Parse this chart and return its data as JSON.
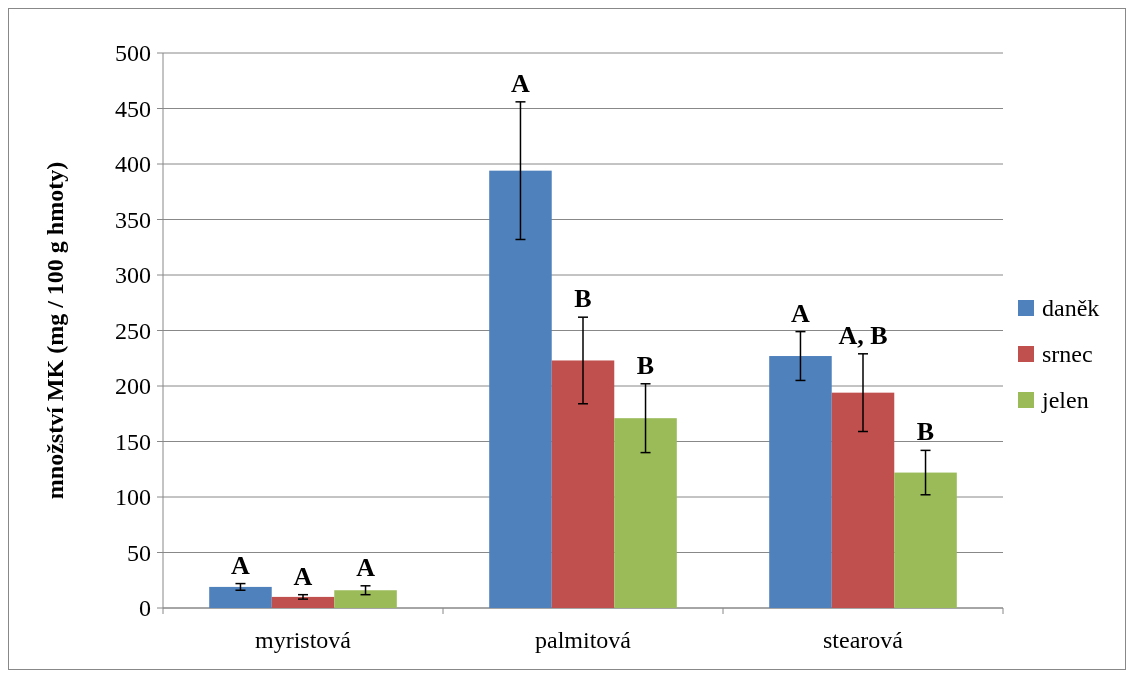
{
  "chart_data": {
    "type": "bar",
    "ylabel": "množství MK (mg / 100 g hmoty)",
    "categories": [
      "myristová",
      "palmitová",
      "stearová"
    ],
    "series": [
      {
        "name": "daněk",
        "color": "#4f81bd",
        "values": [
          19,
          394,
          227
        ],
        "errors": [
          3,
          62,
          22
        ]
      },
      {
        "name": "srnec",
        "color": "#c0504d",
        "values": [
          10,
          223,
          194
        ],
        "errors": [
          2,
          39,
          35
        ]
      },
      {
        "name": "jelen",
        "color": "#9bbb59",
        "values": [
          16,
          171,
          122
        ],
        "errors": [
          4,
          31,
          20
        ]
      }
    ],
    "ylim": [
      0,
      500
    ],
    "yticks": [
      0,
      50,
      100,
      150,
      200,
      250,
      300,
      350,
      400,
      450,
      500
    ],
    "grid": "y",
    "legend": "right",
    "annotations": [
      "A",
      "A",
      "A",
      "A",
      "B",
      "B",
      "A",
      "A, B",
      "B"
    ]
  }
}
